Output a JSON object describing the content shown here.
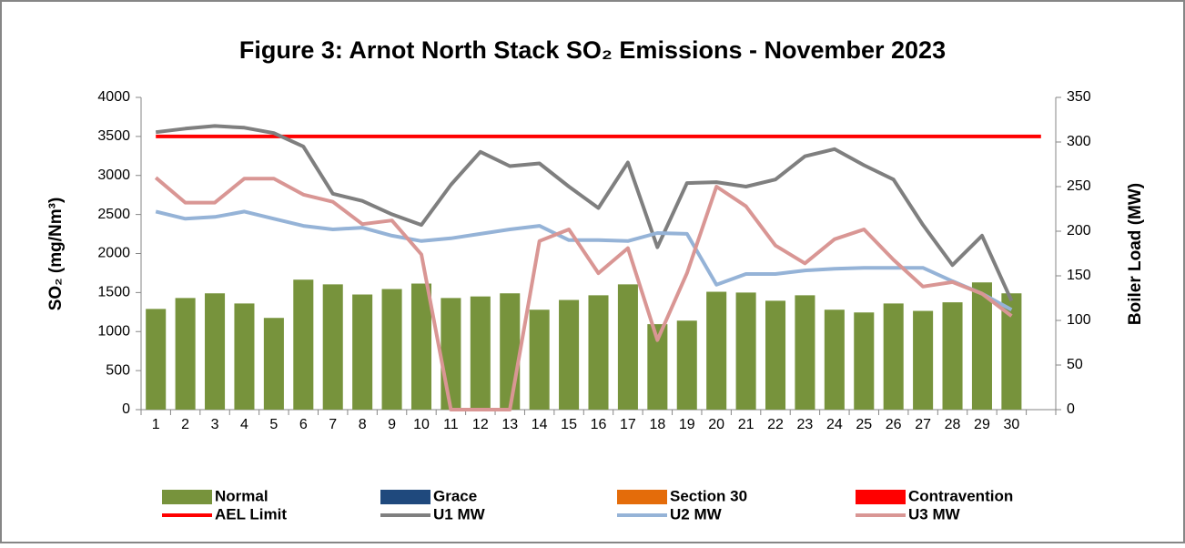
{
  "chart_data": {
    "type": "bar",
    "title": "Figure 3: Arnot North Stack SO₂ Emissions -  November 2023",
    "y_label": "SO₂ (mg/Nm³)",
    "y2_label": "Boiler Load (MW)",
    "categories": [
      "1",
      "2",
      "3",
      "4",
      "5",
      "6",
      "7",
      "8",
      "9",
      "10",
      "11",
      "12",
      "13",
      "14",
      "15",
      "16",
      "17",
      "18",
      "19",
      "20",
      "21",
      "22",
      "23",
      "24",
      "25",
      "26",
      "27",
      "28",
      "29",
      "30",
      null
    ],
    "ylim": [
      0,
      4000
    ],
    "yticks": [
      0,
      500,
      1000,
      1500,
      2000,
      2500,
      3000,
      3500,
      4000
    ],
    "y2lim": [
      0,
      350
    ],
    "y2ticks": [
      0,
      50,
      100,
      150,
      200,
      250,
      300,
      350
    ],
    "grid": false,
    "legend": "bottom",
    "series": [
      {
        "name": "Normal",
        "type": "bar",
        "color": "#77933c",
        "values": [
          1290,
          1430,
          1490,
          1360,
          1175,
          1665,
          1605,
          1475,
          1545,
          1615,
          1430,
          1450,
          1490,
          1280,
          1405,
          1465,
          1605,
          1095,
          1140,
          1510,
          1500,
          1395,
          1465,
          1280,
          1245,
          1360,
          1265,
          1375,
          1630,
          1490,
          null
        ]
      },
      {
        "name": "Grace",
        "type": "bar",
        "color": "#1f497d",
        "values": [
          null,
          null,
          null,
          null,
          null,
          null,
          null,
          null,
          null,
          null,
          null,
          null,
          null,
          null,
          null,
          null,
          null,
          null,
          null,
          null,
          null,
          null,
          null,
          null,
          null,
          null,
          null,
          null,
          null,
          null,
          null
        ]
      },
      {
        "name": "Section 30",
        "type": "bar",
        "color": "#e46c0a",
        "values": [
          null,
          null,
          null,
          null,
          null,
          null,
          null,
          null,
          null,
          null,
          null,
          null,
          null,
          null,
          null,
          null,
          null,
          null,
          null,
          null,
          null,
          null,
          null,
          null,
          null,
          null,
          null,
          null,
          null,
          null,
          null
        ]
      },
      {
        "name": "Contravention",
        "type": "bar",
        "color": "#ff0000",
        "values": [
          null,
          null,
          null,
          null,
          null,
          null,
          null,
          null,
          null,
          null,
          null,
          null,
          null,
          null,
          null,
          null,
          null,
          null,
          null,
          null,
          null,
          null,
          null,
          null,
          null,
          null,
          null,
          null,
          null,
          null,
          null
        ]
      },
      {
        "name": "AEL Limit",
        "type": "line",
        "color": "#ff0000",
        "values": [
          3500,
          3500,
          3500,
          3500,
          3500,
          3500,
          3500,
          3500,
          3500,
          3500,
          3500,
          3500,
          3500,
          3500,
          3500,
          3500,
          3500,
          3500,
          3500,
          3500,
          3500,
          3500,
          3500,
          3500,
          3500,
          3500,
          3500,
          3500,
          3500,
          3500,
          3500
        ]
      },
      {
        "name": "U1 MW",
        "type": "line",
        "axis": "y2",
        "color": "#7f7f7f",
        "values": [
          311,
          315,
          318,
          316,
          310,
          295,
          242,
          234,
          219,
          207,
          252,
          289,
          273,
          276,
          250,
          226,
          277,
          182,
          254,
          255,
          250,
          258,
          284,
          292,
          274,
          258,
          207,
          162,
          195,
          122,
          null
        ]
      },
      {
        "name": "U2 MW",
        "type": "line",
        "axis": "y2",
        "color": "#95b3d7",
        "values": [
          222,
          214,
          216,
          222,
          214,
          206,
          202,
          204,
          195,
          189,
          192,
          197,
          202,
          206,
          190,
          190,
          189,
          198,
          197,
          140,
          152,
          152,
          156,
          158,
          159,
          159,
          159,
          144,
          130,
          112,
          null
        ]
      },
      {
        "name": "U3 MW",
        "type": "line",
        "axis": "y2",
        "color": "#d99694",
        "values": [
          260,
          232,
          232,
          259,
          259,
          241,
          233,
          208,
          212,
          174,
          0,
          0,
          0,
          189,
          202,
          153,
          181,
          78,
          153,
          250,
          228,
          184,
          164,
          191,
          202,
          168,
          138,
          143,
          130,
          105,
          null
        ]
      }
    ]
  }
}
